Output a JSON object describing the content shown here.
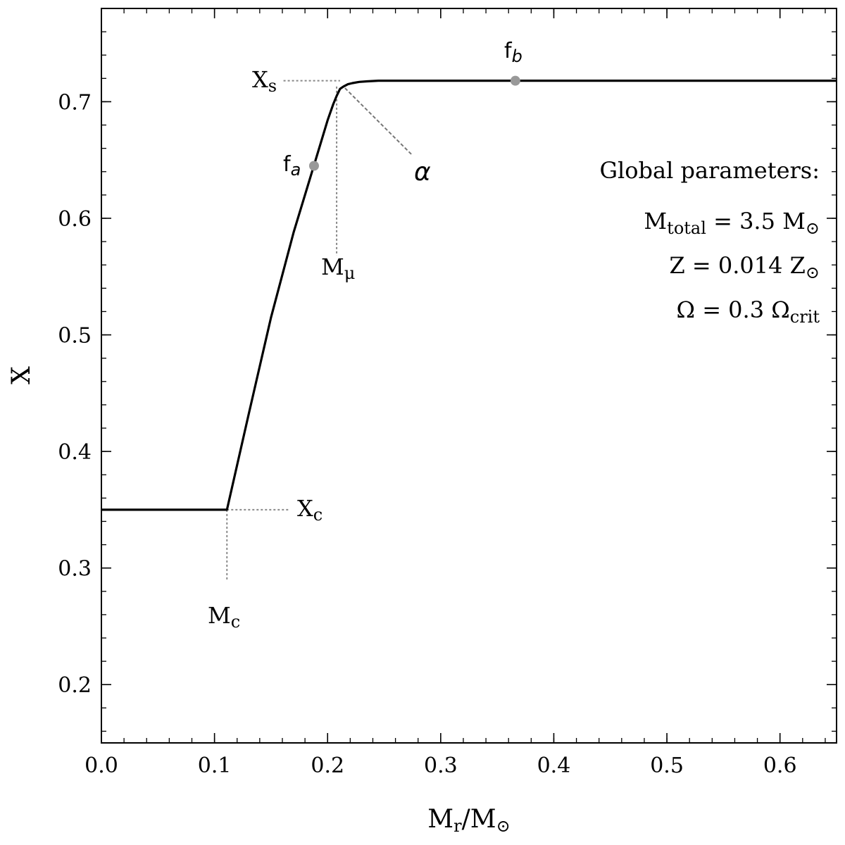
{
  "chart_data": {
    "type": "line",
    "xlabel": "M",
    "xlabel_sub": "r",
    "xlabel_rest": "/M",
    "xlabel_sun": "⊙",
    "ylabel": "X",
    "xlim": [
      0.0,
      0.65
    ],
    "ylim": [
      0.15,
      0.78
    ],
    "x_ticks": [
      {
        "value": 0.0,
        "label": "0.0"
      },
      {
        "value": 0.1,
        "label": "0.1"
      },
      {
        "value": 0.2,
        "label": "0.2"
      },
      {
        "value": 0.3,
        "label": "0.3"
      },
      {
        "value": 0.4,
        "label": "0.4"
      },
      {
        "value": 0.5,
        "label": "0.5"
      },
      {
        "value": 0.6,
        "label": "0.6"
      }
    ],
    "y_ticks": [
      {
        "value": 0.2,
        "label": "0.2"
      },
      {
        "value": 0.3,
        "label": "0.3"
      },
      {
        "value": 0.4,
        "label": "0.4"
      },
      {
        "value": 0.5,
        "label": "0.5"
      },
      {
        "value": 0.6,
        "label": "0.6"
      },
      {
        "value": 0.7,
        "label": "0.7"
      }
    ],
    "x_minor_step": 0.02,
    "y_minor_step": 0.02,
    "grid": false,
    "series": [
      {
        "color": "#000000",
        "x": [
          0.0,
          0.111,
          0.13,
          0.15,
          0.17,
          0.19,
          0.2,
          0.205,
          0.208,
          0.211,
          0.214,
          0.218,
          0.222,
          0.228,
          0.235,
          0.245,
          0.26,
          0.28,
          0.3,
          0.35,
          0.4,
          0.5,
          0.6,
          0.65
        ],
        "y": [
          0.35,
          0.35,
          0.431,
          0.515,
          0.588,
          0.652,
          0.684,
          0.698,
          0.705,
          0.711,
          0.713,
          0.715,
          0.716,
          0.717,
          0.7175,
          0.718,
          0.718,
          0.718,
          0.718,
          0.718,
          0.718,
          0.718,
          0.718,
          0.718
        ]
      }
    ],
    "points": [
      {
        "name": "f",
        "sub": "a",
        "x": 0.188,
        "y": 0.645,
        "color": "#999999"
      },
      {
        "name": "f",
        "sub": "b",
        "x": 0.366,
        "y": 0.718,
        "color": "#999999"
      }
    ],
    "guides": {
      "Xs": {
        "name": "X",
        "sub": "s",
        "x": 0.211,
        "y": 0.718
      },
      "Xc": {
        "name": "X",
        "sub": "c",
        "x": 0.111,
        "y": 0.35
      },
      "Mmu": {
        "name": "M",
        "sub": "μ",
        "x": 0.208,
        "y": 0.713
      },
      "Mc": {
        "name": "M",
        "sub": "c",
        "x": 0.111,
        "y": 0.35
      },
      "alpha": {
        "name": "α",
        "x_from": 0.274,
        "y_from": 0.655,
        "x_to": 0.214,
        "y_to": 0.713
      }
    },
    "info_box": {
      "title": "Global parameters:",
      "line1": {
        "a": "M",
        "a_sub": "total",
        "b": " = 3.5 M",
        "b_sub": "⊙"
      },
      "line2": {
        "a": "Z = 0.014 Z",
        "a_sub": "⊙"
      },
      "line3": {
        "a": "Ω = 0.3 Ω",
        "a_sub": "crit"
      }
    }
  }
}
